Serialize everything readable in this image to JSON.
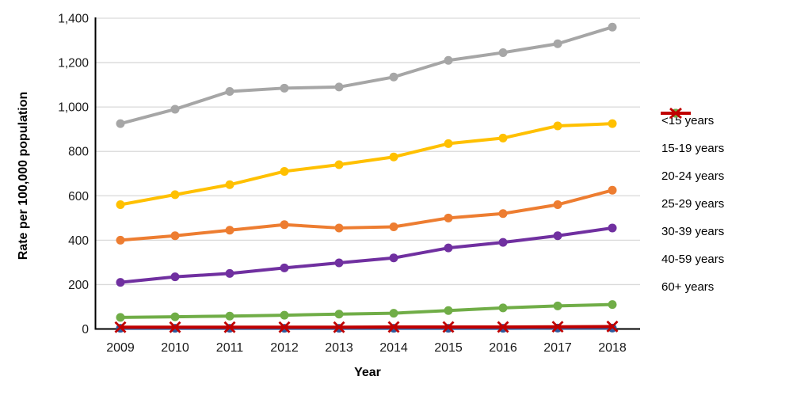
{
  "figure": {
    "background": "#ffffff",
    "grid_color": "#d9d9d9",
    "axis_color": "#000000",
    "tick_color": "#1a1a1a"
  },
  "chart_data": {
    "type": "line",
    "title": "",
    "xlabel": "Year",
    "ylabel": "Rate per 100,000 population",
    "x": [
      2009,
      2010,
      2011,
      2012,
      2013,
      2014,
      2015,
      2016,
      2017,
      2018
    ],
    "ylim": [
      0,
      1400
    ],
    "ytick_values": [
      0,
      200,
      400,
      600,
      800,
      1000,
      1200,
      1400
    ],
    "ytick_labels": [
      "0",
      "200",
      "400",
      "600",
      "800",
      "1,000",
      "1,200",
      "1,400"
    ],
    "grid": true,
    "legend_position": "right",
    "series": [
      {
        "name": "<15 years",
        "color": "#2e5b9e",
        "marker": "circle",
        "values": [
          3,
          3,
          3,
          3,
          3,
          3,
          3,
          3,
          4,
          4
        ]
      },
      {
        "name": "15-19 years",
        "color": "#ed7d31",
        "marker": "circle",
        "values": [
          400,
          420,
          445,
          470,
          455,
          460,
          500,
          520,
          560,
          625
        ]
      },
      {
        "name": "20-24 years",
        "color": "#a6a6a6",
        "marker": "circle",
        "values": [
          925,
          990,
          1070,
          1085,
          1090,
          1135,
          1210,
          1245,
          1285,
          1360
        ]
      },
      {
        "name": "25-29 years",
        "color": "#ffc000",
        "marker": "circle",
        "values": [
          560,
          605,
          650,
          710,
          740,
          775,
          835,
          860,
          915,
          925
        ]
      },
      {
        "name": "30-39 years",
        "color": "#7030a0",
        "marker": "circle",
        "values": [
          210,
          235,
          250,
          275,
          298,
          320,
          365,
          390,
          420,
          455
        ]
      },
      {
        "name": "40-59 years",
        "color": "#70ad47",
        "marker": "circle",
        "values": [
          52,
          55,
          58,
          62,
          67,
          71,
          83,
          95,
          104,
          110
        ]
      },
      {
        "name": "60+ years",
        "color": "#c00000",
        "marker": "x",
        "values": [
          8,
          8,
          8,
          8,
          8,
          9,
          9,
          9,
          10,
          11
        ]
      }
    ]
  }
}
